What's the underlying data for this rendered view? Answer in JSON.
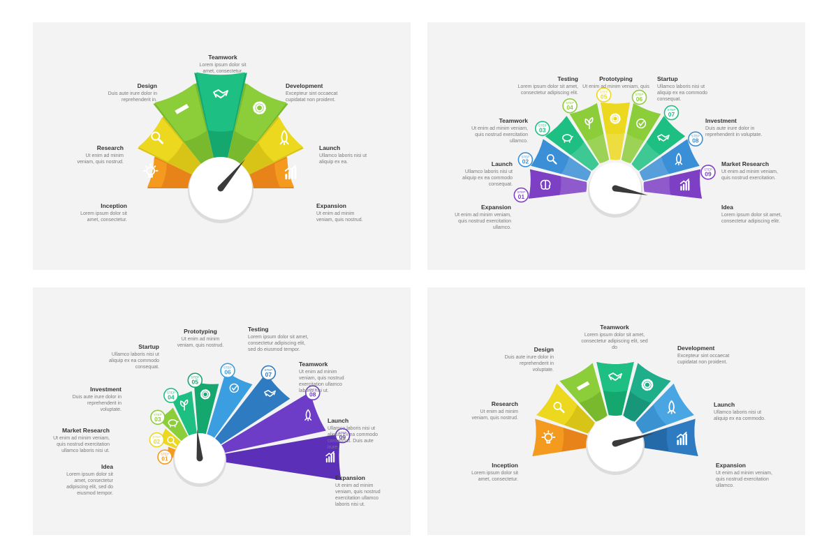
{
  "panels": [
    {
      "id": "p1",
      "segments": [
        {
          "title": "Inception",
          "desc": "Lorem ipsum dolor sit amet, consectetur.",
          "color": "#f39a1f",
          "inner": "#e8831a",
          "icon": "bulb-icon"
        },
        {
          "title": "Research",
          "desc": "Ut enim ad minim veniam, quis nostrud.",
          "color": "#ecd81e",
          "inner": "#d8c416",
          "icon": "magnifier-icon"
        },
        {
          "title": "Design",
          "desc": "Duis aute irure dolor in reprehenderit in.",
          "color": "#8ccd3a",
          "inner": "#79b92e",
          "icon": "pencil-icon"
        },
        {
          "title": "Teamwork",
          "desc": "Lorem ipsum dolor sit amet, consectetur.",
          "color": "#1dc082",
          "inner": "#14a86f",
          "icon": "handshake-icon"
        },
        {
          "title": "Development",
          "desc": "Excepteur sint occaecat cupidatat non proident.",
          "color": "#8ccd3a",
          "inner": "#79b92e",
          "icon": "gear-icon"
        },
        {
          "title": "Launch",
          "desc": "Ullamco laboris nisi ut aliquip ex ea.",
          "color": "#ecd81e",
          "inner": "#d8c416",
          "icon": "rocket-icon"
        },
        {
          "title": "Expansion",
          "desc": "Ut enim ad minim veniam, quis nostrud.",
          "color": "#f39a1f",
          "inner": "#e8831a",
          "icon": "growth-chart-icon"
        }
      ]
    },
    {
      "id": "p2",
      "step_word": "STEP",
      "segments": [
        {
          "title": "Expansion",
          "desc": "Ut enim ad minim veniam, quis nostrud exercitation ullamco.",
          "step": "01",
          "color": "#7d3fc4",
          "icon": "brain-icon"
        },
        {
          "title": "Launch",
          "desc": "Ullamco laboris nisi ut aliquip ex ea commodo consequat.",
          "step": "02",
          "color": "#3b8fd6",
          "icon": "magnifier-icon"
        },
        {
          "title": "Teamwork",
          "desc": "Ut enim ad minim veniam, quis nostrud exercitation ullamco.",
          "step": "03",
          "color": "#1dc082",
          "icon": "piggy-bank-icon"
        },
        {
          "title": "Testing",
          "desc": "Lorem ipsum dolor sit amet, consectetur adipiscing elit.",
          "step": "04",
          "color": "#8ccd3a",
          "icon": "plant-icon"
        },
        {
          "title": "Prototyping",
          "desc": "Ut enim ad minim veniam, quis",
          "step": "05",
          "color": "#ecd81e",
          "icon": "gear-icon"
        },
        {
          "title": "Startup",
          "desc": "Ullamco laboris nisi ut aliquip ex ea commodo consequat.",
          "step": "06",
          "color": "#8ccd3a",
          "icon": "checklist-icon"
        },
        {
          "title": "Investment",
          "desc": "Duis aute irure dolor in reprehenderit in voluptate.",
          "step": "07",
          "color": "#1dc082",
          "icon": "handshake-icon"
        },
        {
          "title": "Market Research",
          "desc": "Ut enim ad minim veniam, quis nostrud exercitation.",
          "step": "08",
          "color": "#3b8fd6",
          "icon": "rocket-icon"
        },
        {
          "title": "Idea",
          "desc": "Lorem ipsum dolor sit amet, consectetur adipiscing elitr.",
          "step": "09",
          "color": "#7d3fc4",
          "icon": "growth-chart-icon"
        }
      ]
    },
    {
      "id": "p3",
      "step_word": "STEP",
      "segments": [
        {
          "title": "Idea",
          "desc": "Lorem ipsum dolor sit amet, consectetur adipiscing elit, sed do eiusmod tempor.",
          "step": "01",
          "color": "#f39a1f",
          "icon": "brain-icon"
        },
        {
          "title": "Market Research",
          "desc": "Ut enim ad minim veniam, quis nostrud exercitation ullamco laboris nisi ut.",
          "step": "02",
          "color": "#ecd81e",
          "icon": "magnifier-icon"
        },
        {
          "title": "Investment",
          "desc": "Duis aute irure dolor in reprehenderit in voluptate.",
          "step": "03",
          "color": "#8ccd3a",
          "icon": "piggy-bank-icon"
        },
        {
          "title": "Startup",
          "desc": "Ullamco laboris nisi ut aliquip ex ea commodo consequat.",
          "step": "04",
          "color": "#1dc082",
          "icon": "plant-icon"
        },
        {
          "title": "Prototyping",
          "desc": "Ut enim ad minim veniam, quis nostrud.",
          "step": "05",
          "color": "#14a86f",
          "icon": "gear-icon"
        },
        {
          "title": "Testing",
          "desc": "Lorem ipsum dolor sit amet, consectetur adipiscing elit, sed do eiusmod tempor.",
          "step": "06",
          "color": "#3b9ee0",
          "icon": "checklist-icon"
        },
        {
          "title": "Teamwork",
          "desc": "Ut enim ad minim veniam, quis nostrud exercitation ullamco laboris nisi ut.",
          "step": "07",
          "color": "#2e7bc2",
          "icon": "handshake-icon"
        },
        {
          "title": "Launch",
          "desc": "Ullamco laboris nisi ut aliquip ex ea commodo consequat. Duis aute irure.",
          "step": "08",
          "color": "#6d3dc8",
          "icon": "rocket-icon"
        },
        {
          "title": "Expansion",
          "desc": "Ut enim ad minim veniam, quis nostrud exercitation ullamco laboris nisi ut.",
          "step": "09",
          "color": "#5b2fb8",
          "icon": "growth-chart-icon"
        }
      ]
    },
    {
      "id": "p4",
      "segments": [
        {
          "title": "Inception",
          "desc": "Lorem ipsum dolor sit amet, consectetur.",
          "color": "#f39a1f",
          "inner": "#e8831a",
          "icon": "bulb-icon"
        },
        {
          "title": "Research",
          "desc": "Ut enim ad minim veniam, quis nostrud.",
          "color": "#ecd81e",
          "inner": "#d8c416",
          "icon": "magnifier-icon"
        },
        {
          "title": "Design",
          "desc": "Duis aute irure dolor in reprehenderit in voluptate.",
          "color": "#8ccd3a",
          "inner": "#79b92e",
          "icon": "pencil-icon"
        },
        {
          "title": "Teamwork",
          "desc": "Lorem ipsum dolor sit amet, consectetur adipiscing elit, sed do",
          "color": "#1dc082",
          "inner": "#14a86f",
          "icon": "handshake-icon"
        },
        {
          "title": "Development",
          "desc": "Excepteur sint occaecat cupidatat non proident.",
          "color": "#1fae8a",
          "inner": "#17967a",
          "icon": "gear-icon"
        },
        {
          "title": "Launch",
          "desc": "Ullamco laboris nisi ut aliquip ex ea commodo.",
          "color": "#4aa6e2",
          "inner": "#3a93d0",
          "icon": "rocket-icon"
        },
        {
          "title": "Expansion",
          "desc": "Ut enim ad minim veniam, quis nostrud exercitation ullamco.",
          "color": "#2e7bc2",
          "inner": "#246aa9",
          "icon": "growth-chart-icon"
        }
      ]
    }
  ]
}
